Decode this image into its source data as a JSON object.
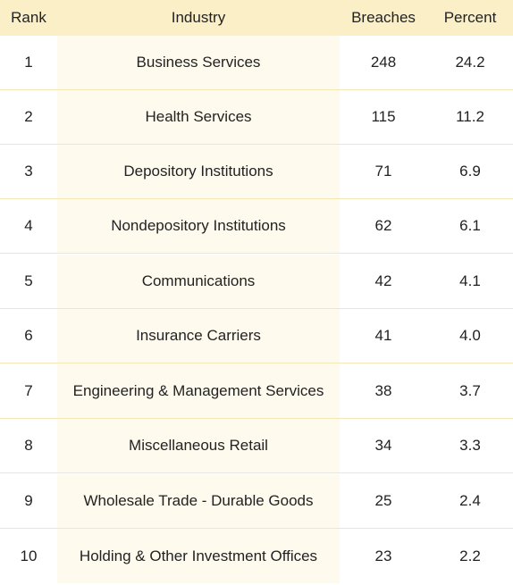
{
  "table": {
    "headers": {
      "rank": "Rank",
      "industry": "Industry",
      "breaches": "Breaches",
      "percent": "Percent"
    },
    "rows": [
      {
        "rank": "1",
        "industry": "Business Services",
        "breaches": "248",
        "percent": "24.2"
      },
      {
        "rank": "2",
        "industry": "Health Services",
        "breaches": "115",
        "percent": "11.2"
      },
      {
        "rank": "3",
        "industry": "Depository Institutions",
        "breaches": "71",
        "percent": "6.9"
      },
      {
        "rank": "4",
        "industry": "Nondepository Institutions",
        "breaches": "62",
        "percent": "6.1"
      },
      {
        "rank": "5",
        "industry": "Communications",
        "breaches": "42",
        "percent": "4.1"
      },
      {
        "rank": "6",
        "industry": "Insurance Carriers",
        "breaches": "41",
        "percent": "4.0"
      },
      {
        "rank": "7",
        "industry": "Engineering & Management Services",
        "breaches": "38",
        "percent": "3.7"
      },
      {
        "rank": "8",
        "industry": "Miscellaneous Retail",
        "breaches": "34",
        "percent": "3.3"
      },
      {
        "rank": "9",
        "industry": "Wholesale Trade - Durable Goods",
        "breaches": "25",
        "percent": "2.4"
      },
      {
        "rank": "10",
        "industry": "Holding & Other Investment Offices",
        "breaches": "23",
        "percent": "2.2"
      }
    ]
  },
  "colors": {
    "header_bg": "#fbefc7",
    "industry_col_bg": "#fefbee",
    "row_divider": "#f5e6b8",
    "text": "#222222"
  }
}
